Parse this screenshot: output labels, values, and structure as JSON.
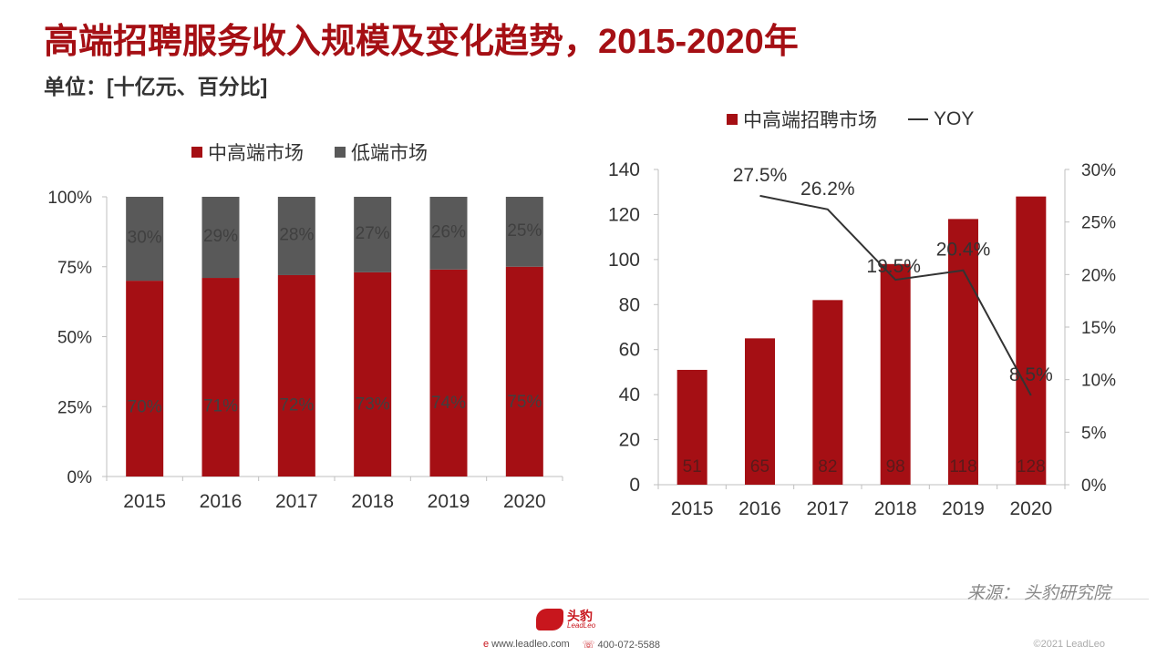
{
  "title": "高端招聘服务收入规模及变化趋势，2015-2020年",
  "unit": "单位：[十亿元、百分比]",
  "colors": {
    "primary": "#a50f14",
    "secondary": "#595959",
    "line": "#333333"
  },
  "chart_data": [
    {
      "type": "bar",
      "stacked": true,
      "categories": [
        "2015",
        "2016",
        "2017",
        "2018",
        "2019",
        "2020"
      ],
      "series": [
        {
          "name": "中高端市场",
          "values": [
            70,
            71,
            72,
            73,
            74,
            75
          ],
          "labels": [
            "70%",
            "71%",
            "72%",
            "73%",
            "74%",
            "75%"
          ]
        },
        {
          "name": "低端市场",
          "values": [
            30,
            29,
            28,
            27,
            26,
            25
          ],
          "labels": [
            "30%",
            "29%",
            "28%",
            "27%",
            "26%",
            "25%"
          ]
        }
      ],
      "yticks": [
        "0%",
        "25%",
        "50%",
        "75%",
        "100%"
      ],
      "ylim": [
        0,
        100
      ],
      "legend": "top",
      "grid": false
    },
    {
      "type": "bar+line",
      "categories": [
        "2015",
        "2016",
        "2017",
        "2018",
        "2019",
        "2020"
      ],
      "bar": {
        "name": "中高端招聘市场",
        "values": [
          51,
          65,
          82,
          98,
          118,
          128
        ],
        "labels": [
          "51",
          "65",
          "82",
          "98",
          "118",
          "128"
        ]
      },
      "line": {
        "name": "YOY",
        "x": [
          "2016",
          "2017",
          "2018",
          "2019",
          "2020"
        ],
        "values": [
          27.5,
          26.2,
          19.5,
          20.4,
          8.5
        ],
        "labels": [
          "27.5%",
          "26.2%",
          "19.5%",
          "20.4%",
          "8.5%"
        ]
      },
      "yticks_left": [
        "0",
        "20",
        "40",
        "60",
        "80",
        "100",
        "120",
        "140"
      ],
      "ylim_left": [
        0,
        140
      ],
      "yticks_right": [
        "0%",
        "5%",
        "10%",
        "15%",
        "20%",
        "25%",
        "30%"
      ],
      "ylim_right": [
        0,
        30
      ],
      "legend": "top",
      "grid": false
    }
  ],
  "footer": {
    "source": "来源： 头豹研究院",
    "logo_name": "头豹",
    "logo_sub": "LeadLeo",
    "website": "www.leadleo.com",
    "phone": "400-072-5588",
    "copyright": "©2021 LeadLeo"
  }
}
